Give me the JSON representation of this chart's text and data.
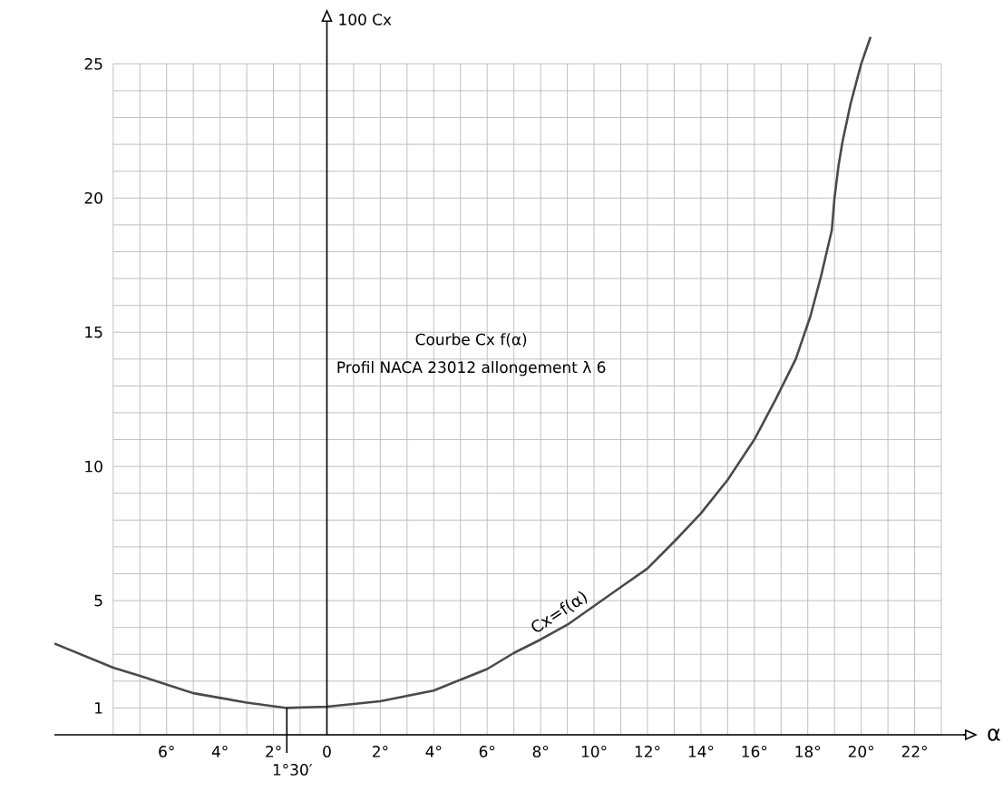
{
  "chart_data": {
    "type": "line",
    "title": "Courbe Cx f(α)",
    "subtitle": "Profil NACA 23012 allongement λ 6",
    "xlabel": "α",
    "ylabel": "100 Cx",
    "x": [
      -10.2,
      -8,
      -7,
      -5,
      -3,
      -1.5,
      0,
      2,
      4,
      6,
      7,
      8,
      9,
      10,
      11,
      12,
      13,
      14,
      15,
      16,
      16.8,
      17.55,
      18.1,
      18.5,
      18.9,
      19.0,
      19.15,
      19.3,
      19.6,
      20.0,
      20.35
    ],
    "series": [
      {
        "name": "Cx=f(α)",
        "color": "#4a4a4a",
        "values": [
          3.4,
          2.5,
          2.2,
          1.55,
          1.2,
          1.0,
          1.05,
          1.25,
          1.65,
          2.45,
          3.05,
          3.55,
          4.1,
          4.8,
          5.5,
          6.2,
          7.2,
          8.25,
          9.5,
          11,
          12.5,
          14,
          15.6,
          17.1,
          18.8,
          20,
          21.2,
          22.1,
          23.5,
          25,
          26
        ]
      }
    ],
    "xlim": [
      -10.2,
      23
    ],
    "ylim": [
      0,
      26.5
    ],
    "xticks": [
      {
        "value": -6,
        "label": "6°"
      },
      {
        "value": -4,
        "label": "4°"
      },
      {
        "value": -2,
        "label": "2°"
      },
      0,
      {
        "value": 2,
        "label": "2°"
      },
      {
        "value": 4,
        "label": "4°"
      },
      {
        "value": 6,
        "label": "6°"
      },
      {
        "value": 8,
        "label": "8°"
      },
      {
        "value": 10,
        "label": "10°"
      },
      {
        "value": 12,
        "label": "12°"
      },
      {
        "value": 14,
        "label": "14°"
      },
      {
        "value": 16,
        "label": "16°"
      },
      {
        "value": 18,
        "label": "18°"
      },
      {
        "value": 20,
        "label": "20°"
      },
      {
        "value": 22,
        "label": "22°"
      }
    ],
    "yticks": [
      1,
      5,
      10,
      15,
      20,
      25
    ],
    "annotations": [
      {
        "text": "1°30′",
        "x": -1.5,
        "y": 1
      }
    ],
    "grid": true
  }
}
